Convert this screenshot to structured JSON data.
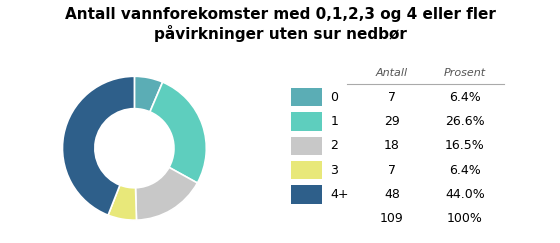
{
  "chart_data": {
    "type": "pie",
    "title": "Antall vannforekomster med 0,1,2,3 og 4 eller fler\npåvirkninger uten sur nedbør",
    "categories": [
      "0",
      "1",
      "2",
      "3",
      "4+"
    ],
    "values": [
      7,
      29,
      18,
      7,
      48
    ],
    "colors": [
      "#5badb5",
      "#5ecebe",
      "#c8c8c8",
      "#e8e87a",
      "#2e5f8a"
    ],
    "column_headers": [
      "Antall",
      "Prosent"
    ],
    "percent_labels": [
      "6.4%",
      "26.6%",
      "16.5%",
      "6.4%",
      "44.0%"
    ],
    "total": 109,
    "total_percent_label": "100%"
  }
}
